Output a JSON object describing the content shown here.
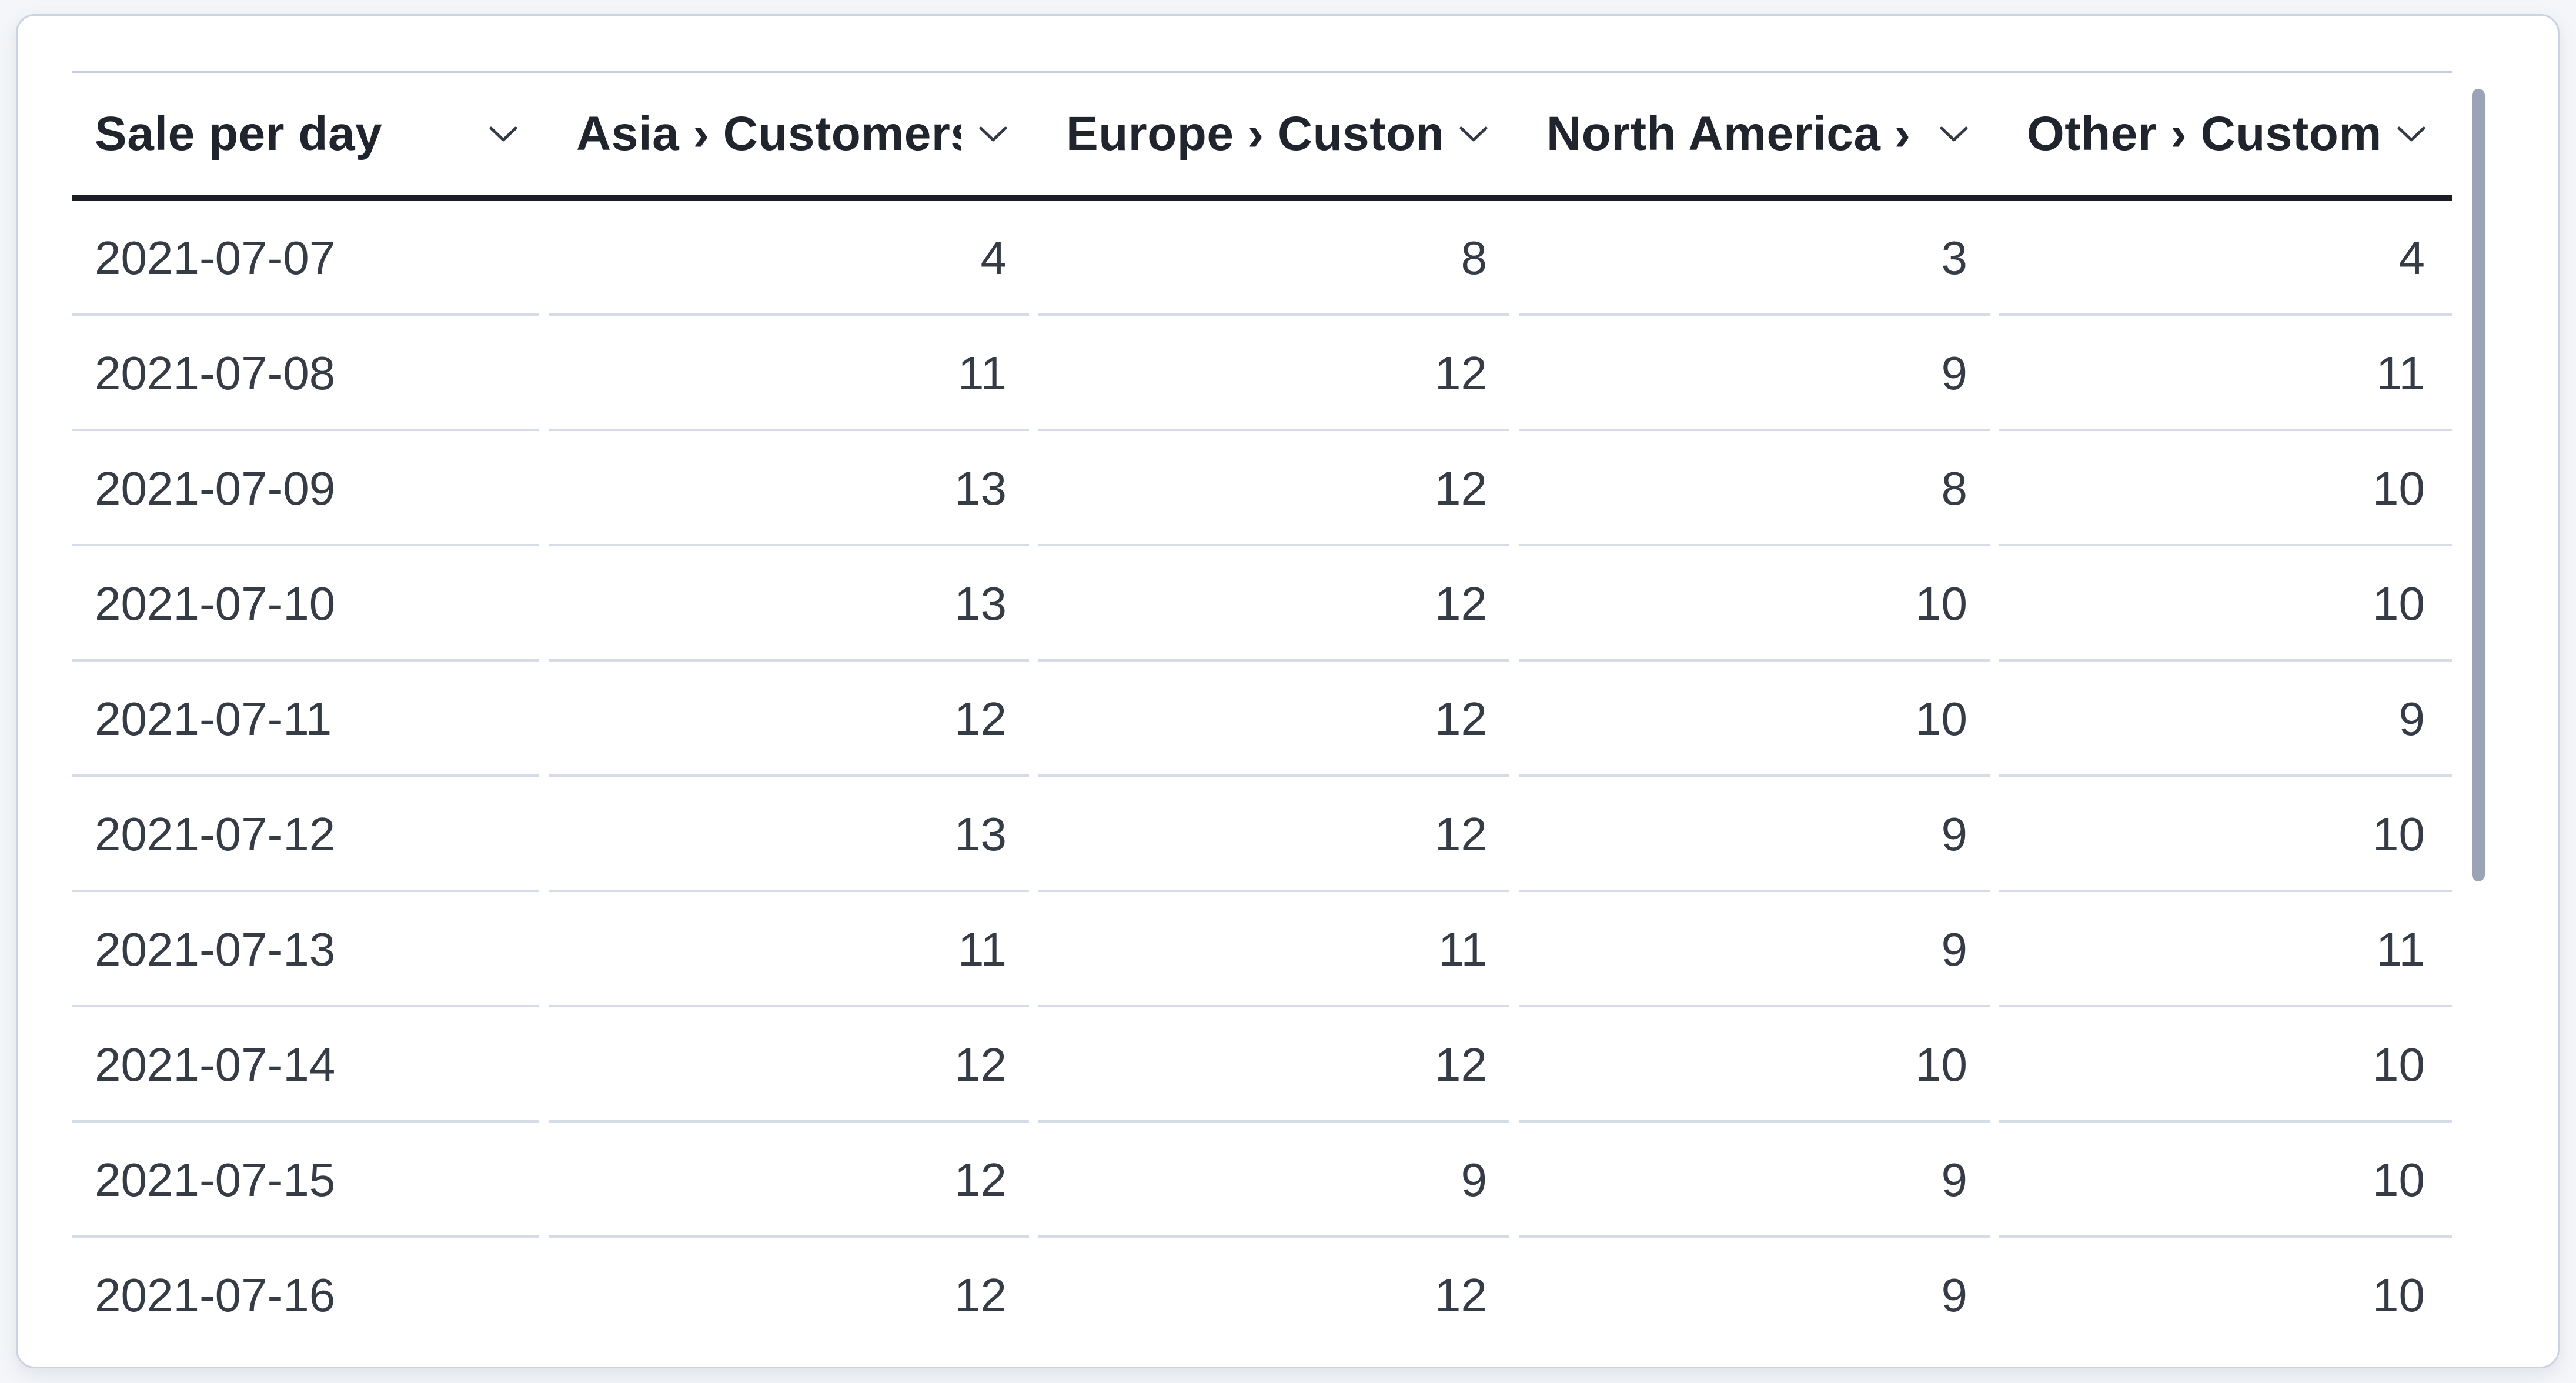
{
  "widget": {
    "type": "data-table",
    "title": "Sale per day"
  },
  "colors": {
    "page_background": "#f4f6f9",
    "card_background": "#ffffff",
    "card_border": "#c9d3e2",
    "header_underline": "#1b1e25",
    "row_separator": "#d6dce7",
    "header_text": "#20242c",
    "body_text": "#363c46",
    "scrollbar_thumb": "#9aa4b5"
  },
  "icons": {
    "column_menu": "chevron-down"
  },
  "table": {
    "columns": [
      {
        "id": "sale_per_day",
        "label": "Sale per day",
        "align": "left"
      },
      {
        "id": "asia",
        "label": "Asia › Customers",
        "align": "right"
      },
      {
        "id": "europe",
        "label": "Europe › Custom",
        "align": "right"
      },
      {
        "id": "north_america",
        "label": "North America ›",
        "align": "right"
      },
      {
        "id": "other",
        "label": "Other › Custome",
        "align": "right"
      }
    ],
    "rows": [
      {
        "date": "2021-07-07",
        "values": [
          4,
          8,
          3,
          4
        ]
      },
      {
        "date": "2021-07-08",
        "values": [
          11,
          12,
          9,
          11
        ]
      },
      {
        "date": "2021-07-09",
        "values": [
          13,
          12,
          8,
          10
        ]
      },
      {
        "date": "2021-07-10",
        "values": [
          13,
          12,
          10,
          10
        ]
      },
      {
        "date": "2021-07-11",
        "values": [
          12,
          12,
          10,
          9
        ]
      },
      {
        "date": "2021-07-12",
        "values": [
          13,
          12,
          9,
          10
        ]
      },
      {
        "date": "2021-07-13",
        "values": [
          11,
          11,
          9,
          11
        ]
      },
      {
        "date": "2021-07-14",
        "values": [
          12,
          12,
          10,
          10
        ]
      },
      {
        "date": "2021-07-15",
        "values": [
          12,
          9,
          9,
          10
        ]
      },
      {
        "date": "2021-07-16",
        "values": [
          12,
          12,
          9,
          10
        ]
      }
    ]
  },
  "scrollbar": {
    "orientation": "vertical",
    "visible": true
  }
}
